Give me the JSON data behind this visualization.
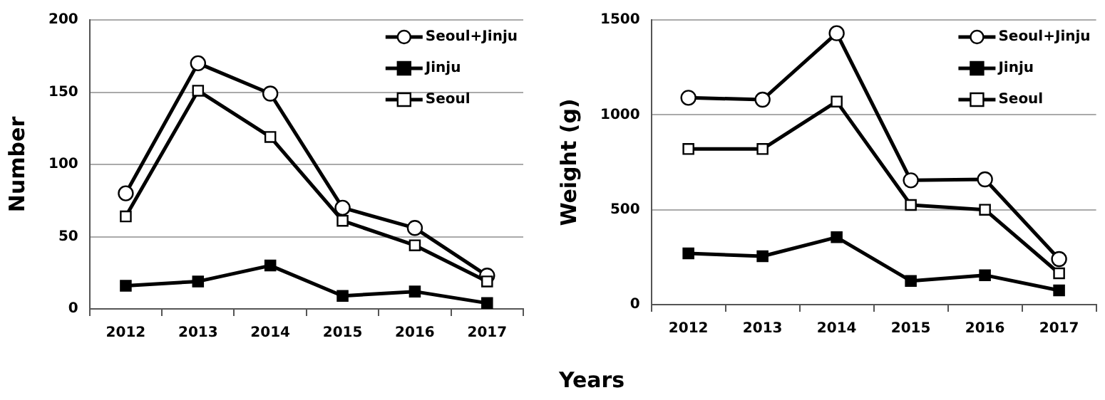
{
  "chart_data": [
    {
      "type": "line",
      "ylabel": "Number",
      "categories": [
        "2012",
        "2013",
        "2014",
        "2015",
        "2016",
        "2017"
      ],
      "ylim": [
        0,
        200
      ],
      "yticks": [
        0,
        50,
        100,
        150,
        200
      ],
      "grid": "y",
      "legend": "top right",
      "series": [
        {
          "name": "Seoul+Jinju",
          "color": "#000000",
          "marker": "circle",
          "colors": [
            "#ffffff",
            "#ffffff",
            "#ffffff",
            "#ffffff",
            "#ffffff",
            "#ffffff"
          ],
          "values": [
            80,
            170,
            149,
            70,
            56,
            23
          ]
        },
        {
          "name": "Jinju",
          "color": "#000000",
          "marker": "square",
          "colors": [
            "#000000",
            "#000000",
            "#000000",
            "#000000",
            "#000000",
            "#000000"
          ],
          "values": [
            16,
            19,
            30,
            9,
            12,
            4
          ]
        },
        {
          "name": "Seoul",
          "color": "#000000",
          "marker": "square",
          "colors": [
            "#ffffff",
            "#ffffff",
            "#ffffff",
            "#ffffff",
            "#ffffff",
            "#ffffff"
          ],
          "values": [
            64,
            151,
            119,
            61,
            44,
            19
          ]
        }
      ]
    },
    {
      "type": "line",
      "ylabel": "Weight (g)",
      "xlabel": "Years",
      "categories": [
        "2012",
        "2013",
        "2014",
        "2015",
        "2016",
        "2017"
      ],
      "ylim": [
        0,
        1500
      ],
      "yticks": [
        0,
        500,
        1000,
        1500
      ],
      "grid": "y",
      "legend": "top right",
      "series": [
        {
          "name": "Seoul+Jinju",
          "color": "#000000",
          "marker": "circle",
          "colors": [
            "#ffffff",
            "#ffffff",
            "#ffffff",
            "#ffffff",
            "#ffffff",
            "#ffffff"
          ],
          "values": [
            1090,
            1080,
            1430,
            655,
            660,
            240
          ]
        },
        {
          "name": "Jinju",
          "color": "#000000",
          "marker": "square",
          "colors": [
            "#000000",
            "#000000",
            "#000000",
            "#000000",
            "#000000",
            "#000000"
          ],
          "values": [
            270,
            255,
            355,
            125,
            155,
            75
          ]
        },
        {
          "name": "Seoul",
          "color": "#000000",
          "marker": "square",
          "colors": [
            "#ffffff",
            "#ffffff",
            "#ffffff",
            "#ffffff",
            "#ffffff",
            "#ffffff"
          ],
          "values": [
            820,
            820,
            1070,
            525,
            500,
            165
          ]
        }
      ]
    }
  ]
}
